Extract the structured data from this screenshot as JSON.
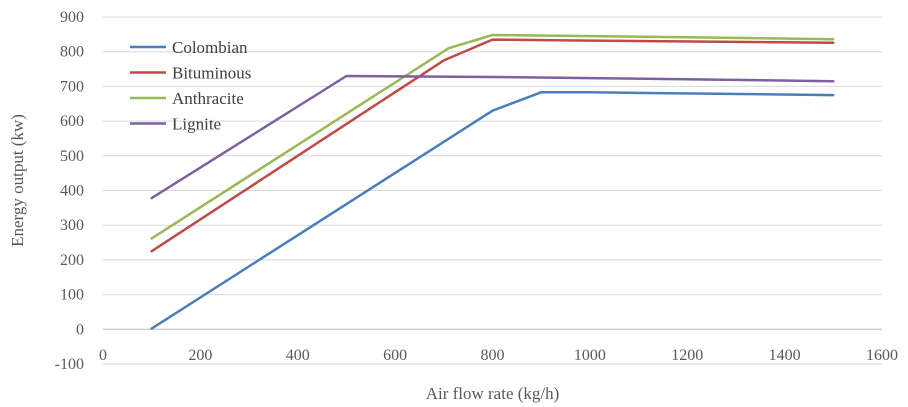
{
  "chart_data": {
    "type": "line",
    "xlabel": "Air flow rate (kg/h)",
    "ylabel": "Energy output (kw)",
    "xlim": [
      0,
      1600
    ],
    "ylim": [
      -100,
      900
    ],
    "x_ticks": [
      0,
      200,
      400,
      600,
      800,
      1000,
      1200,
      1400,
      1600
    ],
    "y_ticks": [
      -100,
      0,
      100,
      200,
      300,
      400,
      500,
      600,
      700,
      800,
      900
    ],
    "grid": "horizontal",
    "legend_position": "top-left",
    "series": [
      {
        "name": "Colombian",
        "color": "#4a7ebb",
        "points": [
          [
            100,
            2
          ],
          [
            800,
            630
          ],
          [
            900,
            683
          ],
          [
            1000,
            683
          ],
          [
            1500,
            675
          ]
        ]
      },
      {
        "name": "Bituminous",
        "color": "#be4b48",
        "points": [
          [
            100,
            225
          ],
          [
            700,
            775
          ],
          [
            800,
            835
          ],
          [
            1000,
            832
          ],
          [
            1500,
            826
          ]
        ]
      },
      {
        "name": "Anthracite",
        "color": "#98b954",
        "points": [
          [
            100,
            262
          ],
          [
            710,
            810
          ],
          [
            800,
            848
          ],
          [
            1000,
            845
          ],
          [
            1500,
            836
          ]
        ]
      },
      {
        "name": "Lignite",
        "color": "#7d60a0",
        "points": [
          [
            100,
            378
          ],
          [
            500,
            730
          ],
          [
            800,
            727
          ],
          [
            1000,
            724
          ],
          [
            1500,
            715
          ]
        ]
      }
    ]
  }
}
